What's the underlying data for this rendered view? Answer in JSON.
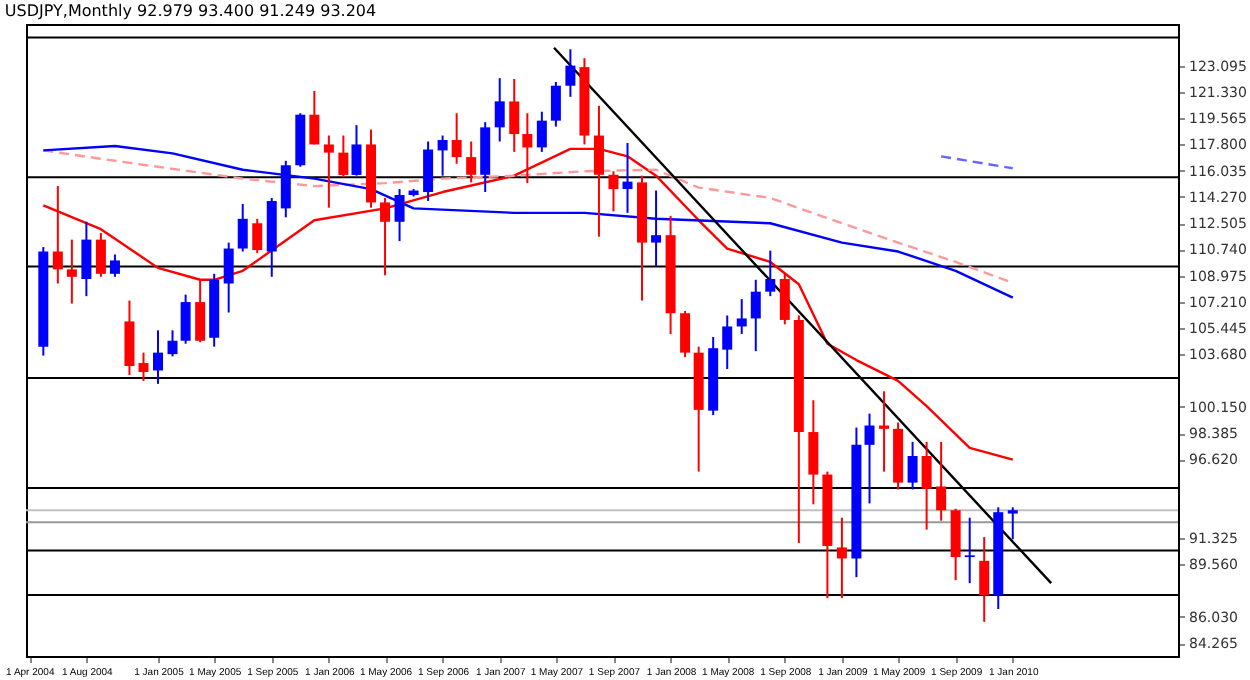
{
  "chart_data": {
    "type": "candlestick",
    "title": "USDJPY,Monthly 92.979 93.400 91.249 93.204",
    "x": [
      "2004-05",
      "2004-06",
      "2004-07",
      "2004-08",
      "2004-09",
      "2004-10",
      "2004-11",
      "2004-12",
      "2005-01",
      "2005-02",
      "2005-03",
      "2005-04",
      "2005-05",
      "2005-06",
      "2005-07",
      "2005-08",
      "2005-09",
      "2005-10",
      "2005-11",
      "2005-12",
      "2006-01",
      "2006-02",
      "2006-03",
      "2006-04",
      "2006-05",
      "2006-06",
      "2006-07",
      "2006-08",
      "2006-09",
      "2006-10",
      "2006-11",
      "2006-12",
      "2007-01",
      "2007-02",
      "2007-03",
      "2007-04",
      "2007-05",
      "2007-06",
      "2007-07",
      "2007-08",
      "2007-09",
      "2007-10",
      "2007-11",
      "2007-12",
      "2008-01",
      "2008-02",
      "2008-03",
      "2008-04",
      "2008-05",
      "2008-06",
      "2008-07",
      "2008-08",
      "2008-09",
      "2008-10",
      "2008-11",
      "2008-12",
      "2009-01",
      "2009-02",
      "2009-03",
      "2009-04",
      "2009-05",
      "2009-06",
      "2009-07",
      "2009-08",
      "2009-09",
      "2009-10",
      "2009-11",
      "2009-12",
      "2010-01"
    ],
    "ohlc": [
      [
        104.2,
        110.9,
        103.6,
        110.6
      ],
      [
        110.6,
        115.0,
        108.45,
        109.4
      ],
      [
        109.4,
        111.4,
        107.1,
        108.9
      ],
      [
        108.75,
        112.6,
        107.6,
        111.4
      ],
      [
        111.4,
        111.85,
        108.9,
        109.1
      ],
      [
        109.1,
        110.4,
        108.9,
        110.0
      ],
      [
        105.9,
        107.3,
        102.3,
        102.9
      ],
      [
        103.1,
        103.8,
        101.9,
        102.5
      ],
      [
        102.6,
        105.3,
        101.7,
        103.8
      ],
      [
        103.7,
        105.3,
        103.55,
        104.6
      ],
      [
        104.6,
        107.7,
        104.4,
        107.2
      ],
      [
        107.2,
        108.7,
        104.5,
        104.6
      ],
      [
        104.8,
        109.1,
        104.2,
        108.7
      ],
      [
        108.45,
        111.2,
        106.5,
        110.8
      ],
      [
        110.8,
        113.8,
        110.6,
        112.8
      ],
      [
        112.5,
        112.8,
        110.5,
        110.7
      ],
      [
        110.6,
        114.2,
        108.9,
        114.0
      ],
      [
        113.5,
        116.7,
        112.9,
        116.4
      ],
      [
        116.4,
        119.9,
        116.3,
        119.8
      ],
      [
        119.8,
        121.4,
        117.8,
        117.8
      ],
      [
        117.8,
        118.4,
        113.55,
        117.25
      ],
      [
        117.25,
        118.4,
        115.6,
        115.75
      ],
      [
        115.75,
        119.1,
        115.7,
        117.8
      ],
      [
        117.8,
        118.8,
        113.55,
        113.9
      ],
      [
        113.9,
        114.2,
        109.0,
        112.6
      ],
      [
        112.6,
        114.8,
        111.3,
        114.4
      ],
      [
        114.4,
        114.8,
        114.3,
        114.7
      ],
      [
        114.6,
        118.0,
        114.0,
        117.46
      ],
      [
        117.4,
        118.4,
        115.7,
        118.1
      ],
      [
        118.1,
        119.9,
        116.5,
        116.95
      ],
      [
        116.95,
        118.0,
        115.25,
        115.76
      ],
      [
        115.76,
        119.3,
        114.6,
        118.95
      ],
      [
        118.95,
        122.26,
        118.0,
        120.7
      ],
      [
        120.69,
        122.2,
        117.3,
        118.5
      ],
      [
        118.5,
        119.9,
        115.2,
        117.6
      ],
      [
        117.6,
        120.0,
        117.3,
        119.4
      ],
      [
        119.4,
        122.0,
        119.0,
        121.75
      ],
      [
        121.75,
        124.2,
        121.0,
        123.1
      ],
      [
        123.0,
        123.6,
        117.8,
        118.4
      ],
      [
        118.4,
        120.4,
        111.6,
        115.76
      ],
      [
        115.76,
        116.0,
        113.3,
        114.8
      ],
      [
        114.8,
        117.9,
        113.2,
        115.3
      ],
      [
        115.25,
        115.7,
        107.3,
        111.2
      ],
      [
        111.2,
        114.7,
        109.6,
        111.7
      ],
      [
        111.7,
        113.0,
        105.05,
        106.45
      ],
      [
        106.45,
        106.6,
        103.5,
        103.8
      ],
      [
        103.8,
        104.2,
        95.8,
        99.95
      ],
      [
        99.9,
        104.85,
        99.6,
        104.1
      ],
      [
        104.0,
        106.3,
        102.7,
        105.56
      ],
      [
        105.56,
        107.4,
        105.05,
        106.1
      ],
      [
        106.1,
        108.7,
        103.9,
        107.9
      ],
      [
        107.9,
        110.66,
        107.6,
        108.75
      ],
      [
        108.75,
        109.1,
        105.7,
        106.0
      ],
      [
        106.0,
        106.3,
        91.0,
        98.46
      ],
      [
        98.46,
        100.6,
        93.6,
        95.6
      ],
      [
        95.6,
        95.8,
        87.3,
        90.8
      ],
      [
        90.7,
        92.7,
        87.3,
        89.96
      ],
      [
        89.96,
        98.76,
        88.7,
        97.6
      ],
      [
        97.6,
        99.7,
        93.66,
        98.9
      ],
      [
        98.9,
        101.2,
        95.8,
        98.675
      ],
      [
        98.675,
        99.1,
        94.6,
        95.06
      ],
      [
        95.06,
        97.8,
        94.6,
        96.85
      ],
      [
        96.85,
        97.8,
        91.9,
        94.64
      ],
      [
        94.8,
        97.8,
        92.5,
        93.2
      ],
      [
        93.2,
        93.3,
        88.5,
        90.05
      ],
      [
        90.05,
        92.7,
        88.3,
        90.17
      ],
      [
        89.8,
        91.4,
        85.7,
        87.5
      ],
      [
        87.5,
        93.4,
        86.56,
        93.07
      ],
      [
        92.979,
        93.4,
        91.249,
        93.204
      ]
    ],
    "colors": [
      "#0000ff",
      "#ff0000",
      "#ff0000",
      "#0000ff",
      "#ff0000",
      "#0000ff",
      "#ff0000",
      "#ff0000",
      "#0000ff",
      "#0000ff",
      "#0000ff",
      "#ff0000",
      "#0000ff",
      "#0000ff",
      "#0000ff",
      "#ff0000",
      "#0000ff",
      "#0000ff",
      "#0000ff",
      "#ff0000",
      "#ff0000",
      "#ff0000",
      "#0000ff",
      "#ff0000",
      "#ff0000",
      "#0000ff",
      "#0000ff",
      "#0000ff",
      "#0000ff",
      "#ff0000",
      "#ff0000",
      "#0000ff",
      "#0000ff",
      "#ff0000",
      "#ff0000",
      "#0000ff",
      "#0000ff",
      "#0000ff",
      "#ff0000",
      "#ff0000",
      "#ff0000",
      "#0000ff",
      "#ff0000",
      "#0000ff",
      "#ff0000",
      "#ff0000",
      "#ff0000",
      "#0000ff",
      "#0000ff",
      "#0000ff",
      "#0000ff",
      "#0000ff",
      "#ff0000",
      "#ff0000",
      "#ff0000",
      "#ff0000",
      "#ff0000",
      "#0000ff",
      "#0000ff",
      "#ff0000",
      "#ff0000",
      "#0000ff",
      "#ff0000",
      "#ff0000",
      "#ff0000",
      "#0000ff",
      "#ff0000",
      "#0000ff",
      "#0000ff"
    ],
    "series": [
      {
        "type": "line",
        "color": "#ff0000",
        "line_style": "solid",
        "x": [
          "2004-05",
          "2004-09",
          "2005-01",
          "2005-04",
          "2005-05",
          "2005-07",
          "2005-12",
          "2006-05",
          "2006-09",
          "2007-02",
          "2007-06",
          "2007-08",
          "2007-10",
          "2007-12",
          "2008-03",
          "2008-05",
          "2008-08",
          "2008-10",
          "2008-12",
          "2009-02",
          "2009-05",
          "2009-07",
          "2009-10",
          "2010-01"
        ],
        "values": [
          113.7,
          112.1,
          109.5,
          108.7,
          108.7,
          109.3,
          112.7,
          113.5,
          114.6,
          115.7,
          117.5,
          117.5,
          117.0,
          115.7,
          112.7,
          110.8,
          109.9,
          108.4,
          104.4,
          103.3,
          101.9,
          100.2,
          97.4,
          96.6
        ]
      },
      {
        "type": "line",
        "color": "#ff9999",
        "line_style": "dashed",
        "x": [
          "2004-05",
          "2004-10",
          "2005-07",
          "2005-12",
          "2006-05",
          "2006-09",
          "2007-02",
          "2007-07",
          "2007-12",
          "2008-03",
          "2008-08",
          "2009-01",
          "2009-05",
          "2009-09",
          "2010-01"
        ],
        "values": [
          117.4,
          116.7,
          115.5,
          115.0,
          115.2,
          115.5,
          115.7,
          116.0,
          116.1,
          114.9,
          114.2,
          112.5,
          111.2,
          109.9,
          108.5
        ]
      },
      {
        "type": "line",
        "color": "#0000ff",
        "line_style": "solid",
        "x": [
          "2004-05",
          "2004-10",
          "2005-02",
          "2005-07",
          "2005-12",
          "2006-04",
          "2006-07",
          "2007-02",
          "2007-07",
          "2007-12",
          "2008-08",
          "2009-01",
          "2009-05",
          "2009-09",
          "2010-01"
        ],
        "values": [
          117.4,
          117.7,
          117.2,
          116.1,
          115.5,
          114.8,
          113.5,
          113.2,
          113.2,
          112.8,
          112.5,
          111.2,
          110.6,
          109.3,
          107.5
        ]
      },
      {
        "type": "line",
        "color": "#6666ff",
        "line_style": "dashed",
        "x": [
          "2009-08",
          "2010-01"
        ],
        "values": [
          117.0,
          116.2
        ]
      },
      {
        "type": "line",
        "color": "#000000",
        "line_style": "solid",
        "x": [
          "2007-04-27",
          "2010-03-24"
        ],
        "values": [
          124.3,
          88.3
        ]
      }
    ],
    "ref_lines": [
      {
        "axis": "y",
        "value": 125.0,
        "color": "#000000"
      },
      {
        "axis": "y",
        "value": 115.6,
        "color": "#000000"
      },
      {
        "axis": "y",
        "value": 109.6,
        "color": "#000000"
      },
      {
        "axis": "y",
        "value": 102.1,
        "color": "#000000"
      },
      {
        "axis": "y",
        "value": 94.7,
        "color": "#000000"
      },
      {
        "axis": "y",
        "value": 93.2,
        "color": "#c0c0c0"
      },
      {
        "axis": "y",
        "value": 92.4,
        "color": "#999999"
      },
      {
        "axis": "y",
        "value": 90.5,
        "color": "#000000"
      },
      {
        "axis": "y",
        "value": 87.5,
        "color": "#000000"
      }
    ],
    "xlim": [
      "2004-03-25",
      "2010-12-20"
    ],
    "xticks": [
      {
        "value": "2004-04-01",
        "label": "1 Apr 2004"
      },
      {
        "value": "2004-08-01",
        "label": "1 Aug 2004"
      },
      {
        "value": "2005-01-01",
        "label": "1 Jan 2005"
      },
      {
        "value": "2005-05-01",
        "label": "1 May 2005"
      },
      {
        "value": "2005-09-01",
        "label": "1 Sep 2005"
      },
      {
        "value": "2006-01-01",
        "label": "1 Jan 2006"
      },
      {
        "value": "2006-05-01",
        "label": "1 May 2006"
      },
      {
        "value": "2006-09-01",
        "label": "1 Sep 2006"
      },
      {
        "value": "2007-01-01",
        "label": "1 Jan 2007"
      },
      {
        "value": "2007-05-01",
        "label": "1 May 2007"
      },
      {
        "value": "2007-09-01",
        "label": "1 Sep 2007"
      },
      {
        "value": "2008-01-01",
        "label": "1 Jan 2008"
      },
      {
        "value": "2008-05-01",
        "label": "1 May 2008"
      },
      {
        "value": "2008-09-01",
        "label": "1 Sep 2008"
      },
      {
        "value": "2009-01-01",
        "label": "1 Jan 2009"
      },
      {
        "value": "2009-05-01",
        "label": "1 May 2009"
      },
      {
        "value": "2009-09-01",
        "label": "1 Sep 2009"
      },
      {
        "value": "2010-01-01",
        "label": "1 Jan 2010"
      }
    ],
    "ylim": [
      83.4,
      125.9
    ],
    "yticks": [
      {
        "value": 123.095,
        "label": "123.095"
      },
      {
        "value": 121.33,
        "label": "121.330"
      },
      {
        "value": 119.565,
        "label": "119.565"
      },
      {
        "value": 117.8,
        "label": "117.800"
      },
      {
        "value": 116.035,
        "label": "116.035"
      },
      {
        "value": 114.27,
        "label": "114.270"
      },
      {
        "value": 112.505,
        "label": "112.505"
      },
      {
        "value": 110.74,
        "label": "110.740"
      },
      {
        "value": 108.975,
        "label": "108.975"
      },
      {
        "value": 107.21,
        "label": "107.210"
      },
      {
        "value": 105.445,
        "label": "105.445"
      },
      {
        "value": 103.68,
        "label": "103.680"
      },
      {
        "value": 100.15,
        "label": "100.150"
      },
      {
        "value": 98.385,
        "label": "98.385"
      },
      {
        "value": 96.62,
        "label": "96.620"
      },
      {
        "value": 91.325,
        "label": "91.325"
      },
      {
        "value": 89.56,
        "label": "89.560"
      },
      {
        "value": 86.03,
        "label": "86.030"
      },
      {
        "value": 84.265,
        "label": "84.265"
      }
    ]
  }
}
